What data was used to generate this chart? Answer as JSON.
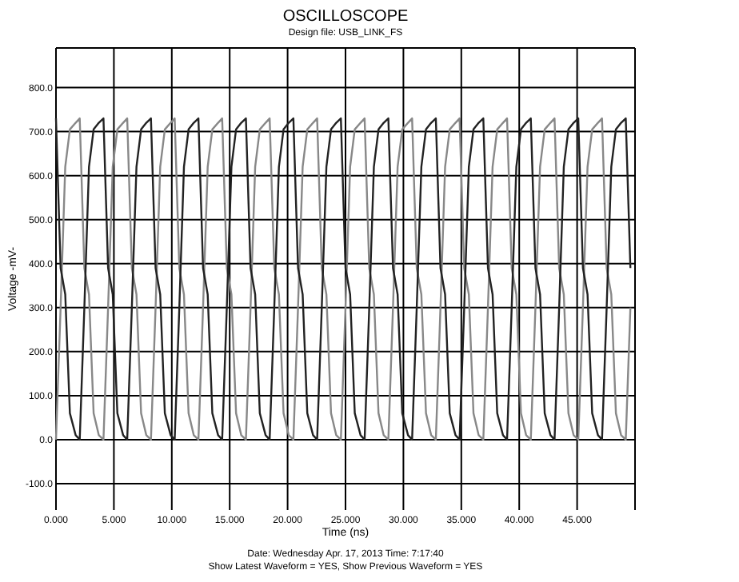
{
  "chart_data": {
    "type": "line",
    "title": "OSCILLOSCOPE",
    "subtitle": "Design file: USB_LINK_FS",
    "xlabel": "Time (ns)",
    "ylabel": "Voltage -mV-",
    "annotations": [
      "Date: Wednesday Apr. 17, 2013  Time: 7:17:40",
      "Show Latest Waveform = YES,  Show Previous Waveform = YES"
    ],
    "x": [
      0,
      0.4,
      0.8,
      1.2,
      1.7,
      2.05,
      2.45,
      2.85,
      3.25,
      3.7,
      4.1,
      4.5,
      4.9,
      5.3,
      5.8,
      6.15,
      6.55,
      6.95,
      7.35,
      7.8,
      8.2,
      8.6,
      9,
      9.4,
      9.9,
      10.25,
      10.65,
      11.05,
      11.45,
      11.9,
      12.3,
      12.7,
      13.1,
      13.5,
      14,
      14.35,
      14.75,
      15.15,
      15.55,
      16,
      16.4,
      16.8,
      17.2,
      17.6,
      18.1,
      18.45,
      18.85,
      19.25,
      19.65,
      20.1,
      20.5,
      20.9,
      21.3,
      21.7,
      22.2,
      22.55,
      22.95,
      23.35,
      23.75,
      24.2,
      24.6,
      25,
      25.4,
      25.8,
      26.3,
      26.65,
      27.05,
      27.45,
      27.85,
      28.3,
      28.7,
      29.1,
      29.5,
      29.9,
      30.4,
      30.75,
      31.15,
      31.55,
      31.95,
      32.4,
      32.8,
      33.2,
      33.6,
      34,
      34.5,
      34.85,
      35.25,
      35.65,
      36.05,
      36.5,
      36.9,
      37.3,
      37.7,
      38.1,
      38.6,
      38.95,
      39.35,
      39.75,
      40.15,
      40.6,
      41,
      41.4,
      41.8,
      42.2,
      42.7,
      43.05,
      43.45,
      43.85,
      44.25,
      44.7,
      45.1,
      45.5,
      45.9,
      46.3,
      46.8,
      47.15,
      47.55,
      47.95,
      48.35,
      48.8,
      49.2,
      49.6
    ],
    "series": [
      {
        "color": "#888888",
        "values": [
          0,
          300,
          620,
          705,
          720,
          730,
          390,
          330,
          60,
          10,
          0,
          300,
          620,
          705,
          720,
          730,
          390,
          330,
          60,
          10,
          0,
          300,
          620,
          705,
          720,
          730,
          390,
          330,
          60,
          10,
          0,
          300,
          620,
          705,
          720,
          730,
          390,
          330,
          60,
          10,
          0,
          300,
          620,
          705,
          720,
          730,
          390,
          330,
          60,
          10,
          0,
          300,
          620,
          705,
          720,
          730,
          390,
          330,
          60,
          10,
          0,
          300,
          620,
          705,
          720,
          730,
          390,
          330,
          60,
          10,
          0,
          300,
          620,
          705,
          720,
          730,
          390,
          330,
          60,
          10,
          0,
          300,
          620,
          705,
          720,
          730,
          390,
          330,
          60,
          10,
          0,
          300,
          620,
          705,
          720,
          730,
          390,
          330,
          60,
          10,
          0,
          300,
          620,
          705,
          720,
          730,
          390,
          330,
          60,
          10,
          0,
          300,
          620,
          705,
          720,
          730,
          390,
          330,
          60,
          10,
          0,
          300
        ]
      },
      {
        "color": "#222222",
        "values": [
          730,
          390,
          330,
          60,
          10,
          0,
          300,
          620,
          705,
          720,
          730,
          390,
          330,
          60,
          10,
          0,
          300,
          620,
          705,
          720,
          730,
          390,
          330,
          60,
          10,
          0,
          300,
          620,
          705,
          720,
          730,
          390,
          330,
          60,
          10,
          0,
          300,
          620,
          705,
          720,
          730,
          390,
          330,
          60,
          10,
          0,
          300,
          620,
          705,
          720,
          730,
          390,
          330,
          60,
          10,
          0,
          300,
          620,
          705,
          720,
          730,
          390,
          330,
          60,
          10,
          0,
          300,
          620,
          705,
          720,
          730,
          390,
          330,
          60,
          10,
          0,
          300,
          620,
          705,
          720,
          730,
          390,
          330,
          60,
          10,
          0,
          300,
          620,
          705,
          720,
          730,
          390,
          330,
          60,
          10,
          0,
          300,
          620,
          705,
          720,
          730,
          390,
          330,
          60,
          10,
          0,
          300,
          620,
          705,
          720,
          730,
          390,
          330,
          60,
          10,
          0,
          300,
          620,
          705,
          720,
          730,
          390
        ]
      }
    ],
    "xlim": [
      0,
      50
    ],
    "ylim": [
      -160,
      890
    ],
    "xticks": [
      {
        "value": 0,
        "label": "0.000"
      },
      {
        "value": 5,
        "label": "5.000"
      },
      {
        "value": 10,
        "label": "10.000"
      },
      {
        "value": 15,
        "label": "15.000"
      },
      {
        "value": 20,
        "label": "20.000"
      },
      {
        "value": 25,
        "label": "25.000"
      },
      {
        "value": 30,
        "label": "30.000"
      },
      {
        "value": 35,
        "label": "35.000"
      },
      {
        "value": 40,
        "label": "40.000"
      },
      {
        "value": 45,
        "label": "45.000"
      },
      {
        "value": 50,
        "label": null
      }
    ],
    "yticks": [
      {
        "value": -100,
        "label": "-100.0"
      },
      {
        "value": 0,
        "label": "0.0"
      },
      {
        "value": 100,
        "label": "100.0"
      },
      {
        "value": 200,
        "label": "200.0"
      },
      {
        "value": 300,
        "label": "300.0"
      },
      {
        "value": 400,
        "label": "400.0"
      },
      {
        "value": 500,
        "label": "500.0"
      },
      {
        "value": 600,
        "label": "600.0"
      },
      {
        "value": 700,
        "label": "700.0"
      },
      {
        "value": 800,
        "label": "800.0"
      }
    ],
    "grid": true,
    "marker": "none",
    "line_style": "solid"
  }
}
